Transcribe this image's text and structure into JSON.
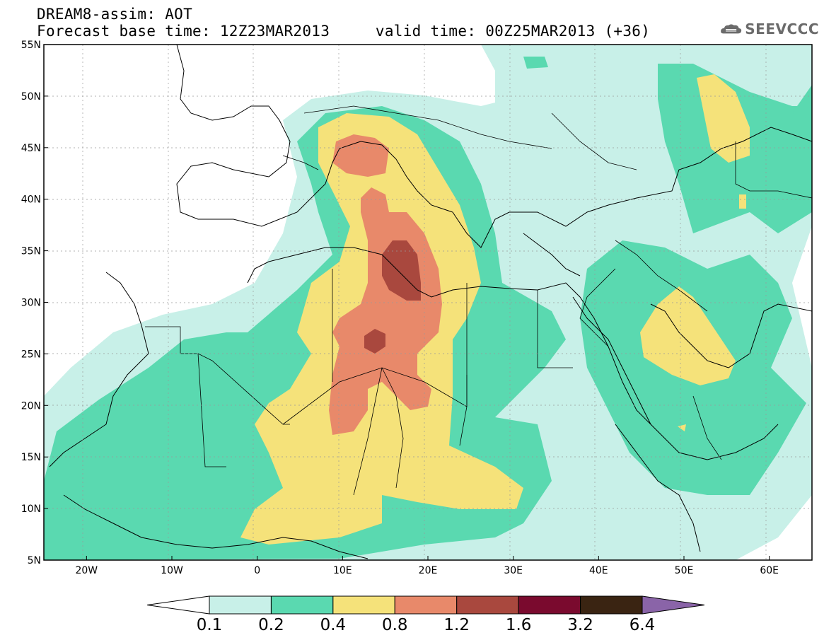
{
  "title_line1": "DREAM8-assim: AOT",
  "title_line2": "Forecast base time: 12Z23MAR2013     valid time: 00Z25MAR2013 (+36)",
  "logo_text": "SEEVCCC",
  "map": {
    "lon_range": [
      -25,
      65
    ],
    "lat_range": [
      5,
      55
    ],
    "lon_ticks": [
      {
        "value": -20,
        "label": "20W"
      },
      {
        "value": -10,
        "label": "10W"
      },
      {
        "value": 0,
        "label": "0"
      },
      {
        "value": 10,
        "label": "10E"
      },
      {
        "value": 20,
        "label": "20E"
      },
      {
        "value": 30,
        "label": "30E"
      },
      {
        "value": 40,
        "label": "40E"
      },
      {
        "value": 50,
        "label": "50E"
      },
      {
        "value": 60,
        "label": "60E"
      }
    ],
    "lat_ticks": [
      {
        "value": 55,
        "label": "55N"
      },
      {
        "value": 50,
        "label": "50N"
      },
      {
        "value": 45,
        "label": "45N"
      },
      {
        "value": 40,
        "label": "40N"
      },
      {
        "value": 35,
        "label": "35N"
      },
      {
        "value": 30,
        "label": "30N"
      },
      {
        "value": 25,
        "label": "25N"
      },
      {
        "value": 20,
        "label": "20N"
      },
      {
        "value": 15,
        "label": "15N"
      },
      {
        "value": 10,
        "label": "10N"
      },
      {
        "value": 5,
        "label": "5N"
      }
    ],
    "grid": true
  },
  "colorbar": {
    "labels": [
      "0.1",
      "0.2",
      "0.4",
      "0.8",
      "1.2",
      "1.6",
      "3.2",
      "6.4"
    ],
    "colors": [
      "#ffffff",
      "#c8f0e8",
      "#5ad9b0",
      "#f5e27a",
      "#e8896a",
      "#a9483e",
      "#7a0a2e",
      "#3a2412",
      "#8a64a8"
    ]
  },
  "levels": {
    "0.1": "#c8f0e8",
    "0.2": "#5ad9b0",
    "0.4": "#f5e27a",
    "0.8": "#e8896a",
    "1.2": "#a9483e"
  }
}
